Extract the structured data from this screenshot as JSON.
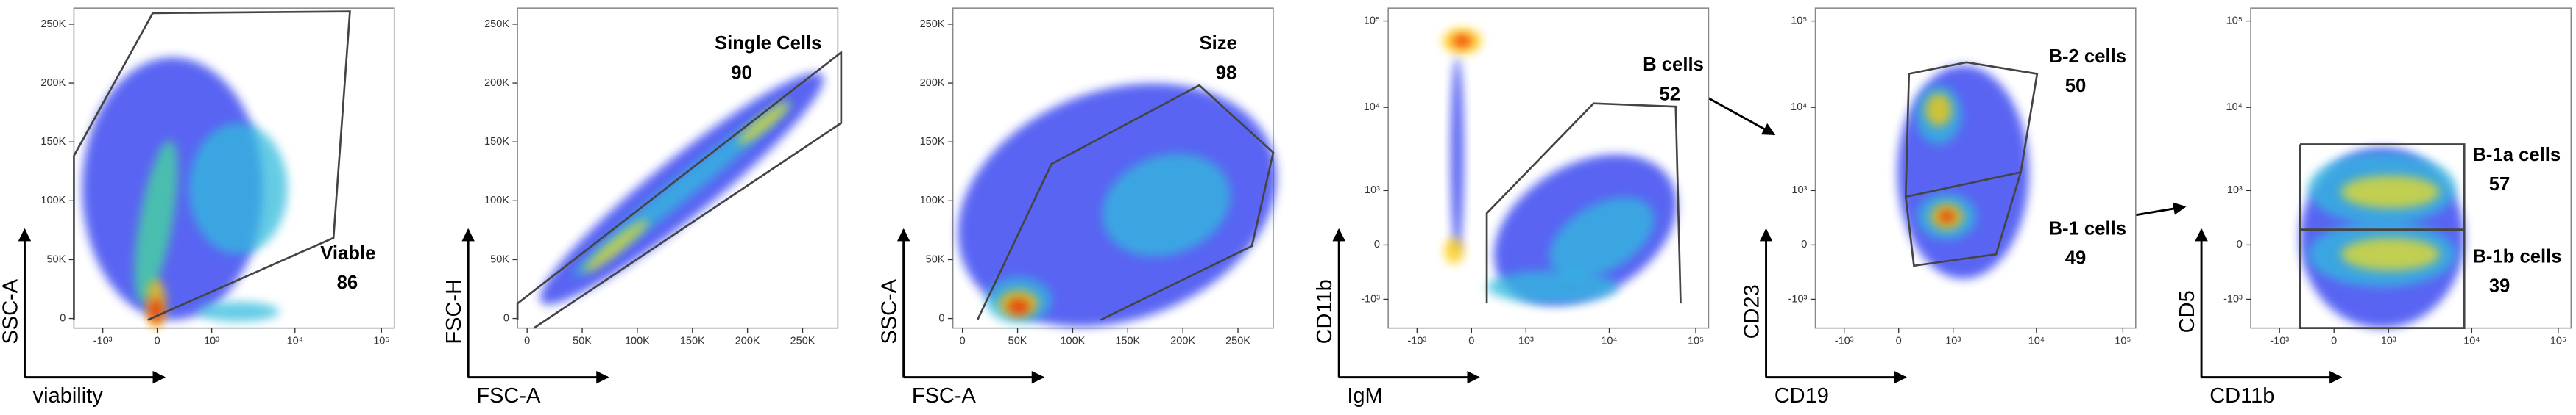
{
  "panels": [
    {
      "x_label": "viability",
      "y_label": "SSC-A",
      "x_ticks": [
        "-10³",
        "0",
        "10³",
        "10⁴",
        "10⁵"
      ],
      "y_ticks": [
        "0",
        "50K",
        "100K",
        "150K",
        "200K",
        "250K"
      ],
      "gates": [
        {
          "name": "Viable",
          "value": "86"
        }
      ]
    },
    {
      "x_label": "FSC-A",
      "y_label": "FSC-H",
      "x_ticks": [
        "0",
        "50K",
        "100K",
        "150K",
        "200K",
        "250K"
      ],
      "y_ticks": [
        "0",
        "50K",
        "100K",
        "150K",
        "200K",
        "250K"
      ],
      "gates": [
        {
          "name": "Single Cells",
          "value": "90"
        }
      ]
    },
    {
      "x_label": "FSC-A",
      "y_label": "SSC-A",
      "x_ticks": [
        "0",
        "50K",
        "100K",
        "150K",
        "200K",
        "250K"
      ],
      "y_ticks": [
        "0",
        "50K",
        "100K",
        "150K",
        "200K",
        "250K"
      ],
      "gates": [
        {
          "name": "Size",
          "value": "98"
        }
      ]
    },
    {
      "x_label": "IgM",
      "y_label": "CD11b",
      "x_ticks": [
        "-10³",
        "0",
        "10³",
        "10⁴",
        "10⁵"
      ],
      "y_ticks": [
        "-10³",
        "0",
        "10³",
        "10⁴",
        "10⁵"
      ],
      "gates": [
        {
          "name": "B cells",
          "value": "52"
        }
      ]
    },
    {
      "x_label": "CD19",
      "y_label": "CD23",
      "x_ticks": [
        "-10³",
        "0",
        "10³",
        "10⁴",
        "10⁵"
      ],
      "y_ticks": [
        "-10³",
        "0",
        "10³",
        "10⁴",
        "10⁵"
      ],
      "gates": [
        {
          "name": "B-2 cells",
          "value": "50"
        },
        {
          "name": "B-1 cells",
          "value": "49"
        }
      ]
    },
    {
      "x_label": "CD11b",
      "y_label": "CD5",
      "x_ticks": [
        "-10³",
        "0",
        "10³",
        "10⁴",
        "10⁵"
      ],
      "y_ticks": [
        "-10³",
        "0",
        "10³",
        "10⁴",
        "10⁵"
      ],
      "gates": [
        {
          "name": "B-1a cells",
          "value": "57"
        },
        {
          "name": "B-1b cells",
          "value": "39"
        }
      ]
    }
  ]
}
